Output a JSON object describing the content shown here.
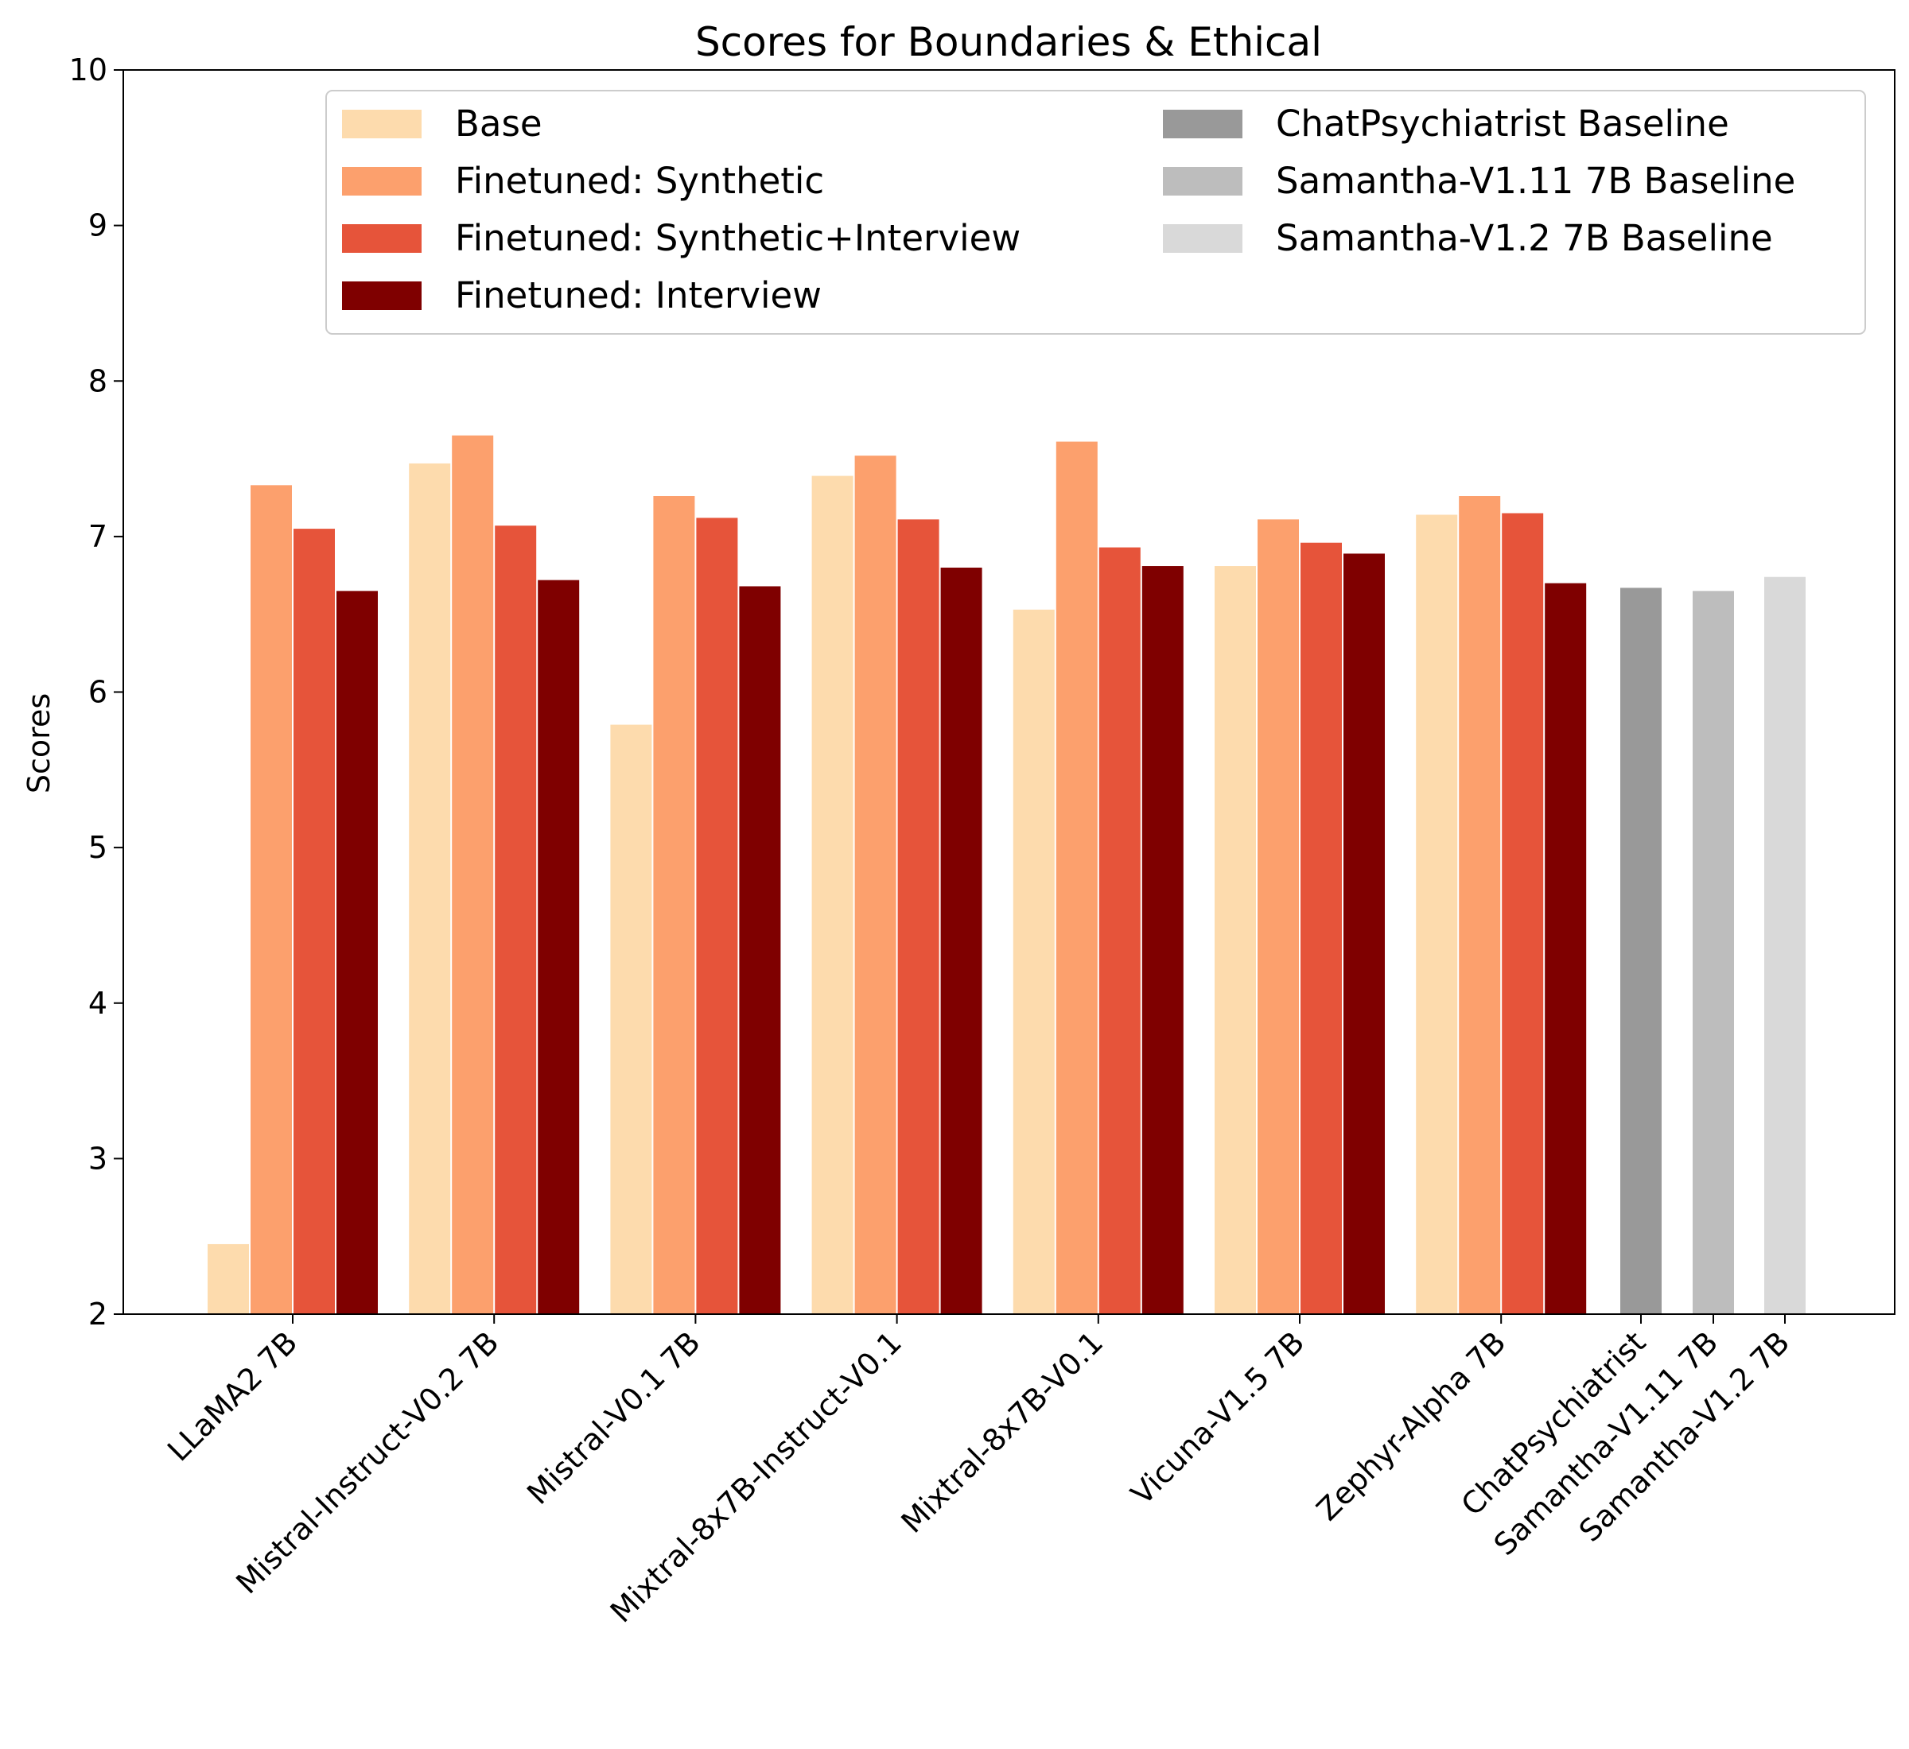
{
  "chart_data": {
    "type": "bar",
    "title": "Scores for Boundaries & Ethical",
    "xlabel": "",
    "ylabel": "Scores",
    "ylim": [
      2,
      10
    ],
    "yticks": [
      2,
      3,
      4,
      5,
      6,
      7,
      8,
      9,
      10
    ],
    "grid": false,
    "legend_placement": "top",
    "categories": [
      "LLaMA2 7B",
      "Mistral-Instruct-V0.2 7B",
      "Mistral-V0.1 7B",
      "Mixtral-8x7B-Instruct-V0.1",
      "Mixtral-8x7B-V0.1",
      "Vicuna-V1.5 7B",
      "Zephyr-Alpha 7B"
    ],
    "series": [
      {
        "name": "Base",
        "color": "#fddbad",
        "values": [
          2.45,
          7.47,
          5.79,
          7.39,
          6.53,
          6.81,
          7.14
        ]
      },
      {
        "name": "Finetuned: Synthetic",
        "color": "#fca06d",
        "values": [
          7.33,
          7.65,
          7.26,
          7.52,
          7.61,
          7.11,
          7.26
        ]
      },
      {
        "name": "Finetuned: Synthetic+Interview",
        "color": "#e6543a",
        "values": [
          7.05,
          7.07,
          7.12,
          7.11,
          6.93,
          6.96,
          7.15
        ]
      },
      {
        "name": "Finetuned: Interview",
        "color": "#7f0000",
        "values": [
          6.65,
          6.72,
          6.68,
          6.8,
          6.81,
          6.89,
          6.7
        ]
      }
    ],
    "baselines": [
      {
        "name": "ChatPsychiatrist Baseline",
        "category": "ChatPsychiatrist",
        "color": "#999999",
        "value": 6.67
      },
      {
        "name": "Samantha-V1.11 7B Baseline",
        "category": "Samantha-V1.11 7B",
        "color": "#bdbdbd",
        "value": 6.65
      },
      {
        "name": "Samantha-V1.2 7B Baseline",
        "category": "Samantha-V1.2 7B",
        "color": "#d9d9d9",
        "value": 6.74
      }
    ]
  }
}
